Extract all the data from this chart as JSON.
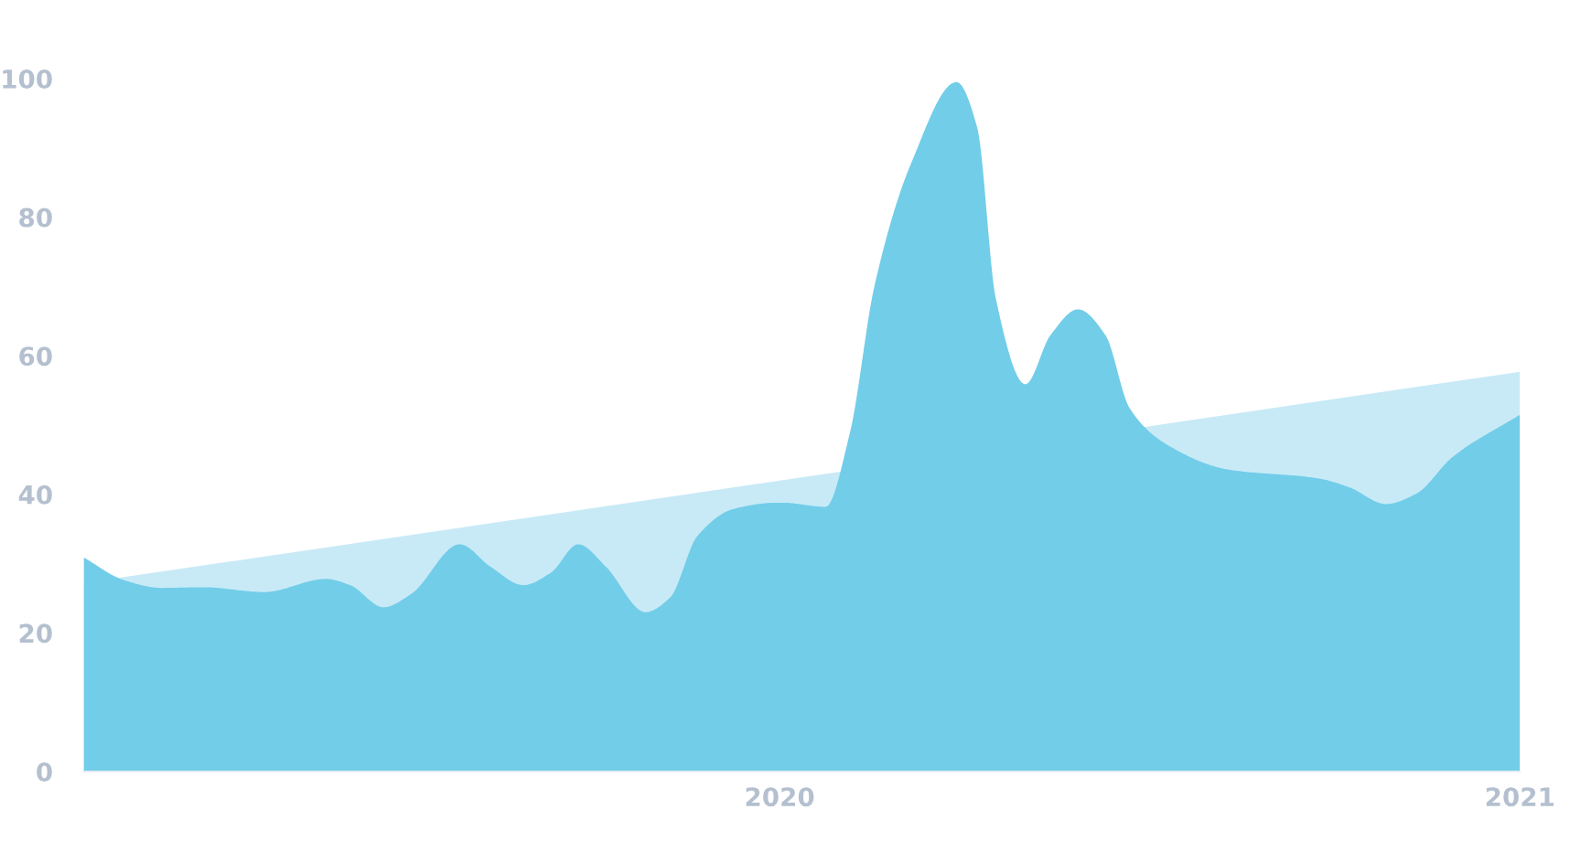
{
  "chart_data": {
    "type": "area",
    "xlim": [
      2019.06,
      2021.0
    ],
    "ylim": [
      0,
      100
    ],
    "xticks": [
      2020,
      2021
    ],
    "yticks": [
      0,
      20,
      40,
      60,
      80,
      100
    ],
    "grid": false,
    "legend": false,
    "series": [
      {
        "color": "#c8eaf7",
        "x": [
          2019.06,
          2021.0
        ],
        "values": [
          27.2,
          57.7
        ]
      },
      {
        "color": "#72cde8",
        "x": [
          2019.06,
          2019.115,
          2019.165,
          2019.222,
          2019.304,
          2019.387,
          2019.42,
          2019.465,
          2019.502,
          2019.568,
          2019.609,
          2019.654,
          2019.691,
          2019.728,
          2019.765,
          2019.819,
          2019.852,
          2019.889,
          2019.938,
          2019.996,
          2020.004,
          2020.062,
          2020.095,
          2020.128,
          2020.177,
          2020.239,
          2020.267,
          2020.292,
          2020.332,
          2020.366,
          2020.403,
          2020.44,
          2020.473,
          2020.523,
          2020.605,
          2020.728,
          2020.77,
          2020.819,
          2020.86,
          2020.909,
          2021.0
        ],
        "values": [
          30.9,
          27.6,
          26.5,
          26.6,
          25.9,
          27.8,
          26.9,
          23.7,
          25.6,
          32.8,
          29.6,
          26.9,
          28.7,
          32.8,
          29.6,
          23.0,
          25.1,
          34.0,
          37.9,
          38.8,
          38.8,
          38.2,
          48.9,
          70.0,
          87.6,
          99.5,
          92.9,
          68.3,
          55.9,
          63.0,
          66.7,
          63.0,
          52.4,
          47.2,
          43.6,
          42.3,
          41.0,
          38.6,
          40.1,
          45.4,
          51.5
        ]
      }
    ]
  }
}
